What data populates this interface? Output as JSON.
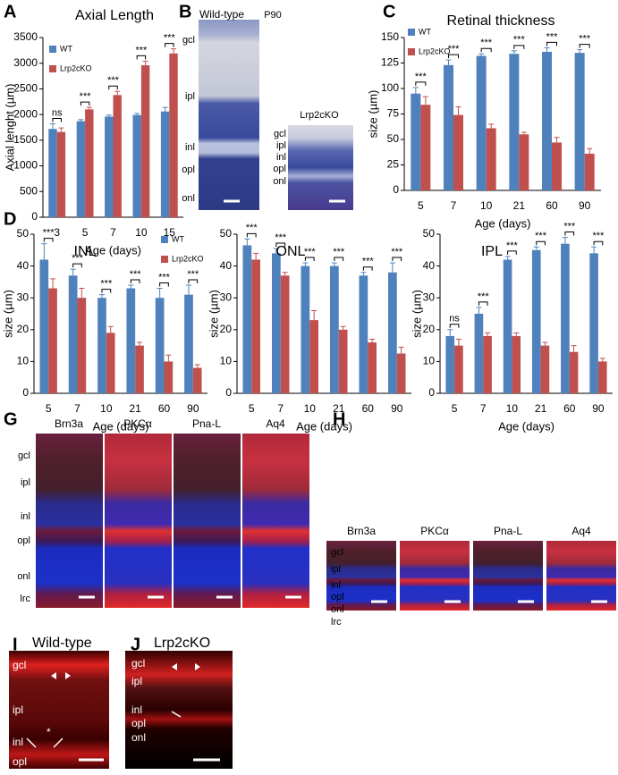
{
  "chart_data": [
    {
      "type": "bar",
      "panel": "A",
      "title": "Axial Length",
      "ylabel": "Axial lenght (µm)",
      "xlabel": "Age (days)",
      "categories": [
        "3",
        "5",
        "7",
        "10",
        "15"
      ],
      "series": [
        {
          "name": "WT",
          "color": "#4f81bd",
          "values": [
            1720,
            1870,
            1960,
            1990,
            2060
          ],
          "errors": [
            100,
            30,
            30,
            30,
            80
          ]
        },
        {
          "name": "Lrp2cKO",
          "color": "#c0504d",
          "values": [
            1660,
            2100,
            2380,
            2960,
            3190
          ],
          "errors": [
            80,
            40,
            70,
            80,
            90
          ]
        }
      ],
      "significance": [
        "ns",
        "***",
        "***",
        "***",
        "***"
      ],
      "ylim": [
        0,
        3500
      ],
      "yticks": [
        0,
        500,
        1000,
        1500,
        2000,
        2500,
        3000,
        3500
      ],
      "legend": "upper left"
    },
    {
      "type": "bar",
      "panel": "C",
      "title": "Retinal thickness",
      "ylabel": "size (µm)",
      "xlabel": "Age (days)",
      "categories": [
        "5",
        "7",
        "10",
        "21",
        "60",
        "90"
      ],
      "series": [
        {
          "name": "WT",
          "color": "#4f81bd",
          "values": [
            95,
            123,
            132,
            134,
            136,
            135
          ],
          "errors": [
            6,
            5,
            2,
            3,
            4,
            3
          ]
        },
        {
          "name": "Lrp2cKO",
          "color": "#c0504d",
          "values": [
            84,
            74,
            61,
            55,
            47,
            36
          ],
          "errors": [
            8,
            8,
            4,
            2,
            5,
            5
          ]
        }
      ],
      "significance": [
        "***",
        "***",
        "***",
        "***",
        "***",
        "***"
      ],
      "ylim": [
        0,
        150
      ],
      "yticks": [
        0,
        25,
        50,
        75,
        100,
        125,
        150
      ],
      "legend": "upper left"
    },
    {
      "type": "bar",
      "panel": "D",
      "title": "INL",
      "ylabel": "size (µm)",
      "xlabel": "Age (days)",
      "categories": [
        "5",
        "7",
        "10",
        "21",
        "60",
        "90"
      ],
      "series": [
        {
          "name": "WT",
          "color": "#4f81bd",
          "values": [
            42,
            37,
            30,
            33,
            30,
            31
          ],
          "errors": [
            5,
            2,
            1,
            1,
            3,
            3
          ]
        },
        {
          "name": "Lrp2cKO",
          "color": "#c0504d",
          "values": [
            33,
            30,
            19,
            15,
            10,
            8
          ],
          "errors": [
            3,
            3,
            2,
            1,
            2,
            1
          ]
        }
      ],
      "significance": [
        "***",
        "***",
        "***",
        "***",
        "***",
        "***"
      ],
      "ylim": [
        0,
        50
      ],
      "yticks": [
        0,
        10,
        20,
        30,
        40,
        50
      ],
      "legend": "upper right"
    },
    {
      "type": "bar",
      "title": "ONL",
      "ylabel": "size (µm)",
      "xlabel": "Age (days)",
      "categories": [
        "5",
        "7",
        "10",
        "21",
        "60",
        "90"
      ],
      "series": [
        {
          "color": "#4f81bd",
          "values": [
            46.5,
            44,
            40,
            40,
            37,
            38
          ],
          "errors": [
            2,
            1.5,
            1,
            1,
            1,
            3
          ]
        },
        {
          "color": "#c0504d",
          "values": [
            42,
            37,
            23,
            20,
            16,
            12.5
          ],
          "errors": [
            2,
            1,
            3,
            1,
            1,
            2
          ]
        }
      ],
      "significance": [
        "***",
        "***",
        "***",
        "***",
        "***",
        "***"
      ],
      "ylim": [
        0,
        50
      ],
      "yticks": [
        0,
        10,
        20,
        30,
        40,
        50
      ]
    },
    {
      "type": "bar",
      "title": "IPL",
      "ylabel": "size (µm)",
      "xlabel": "Age (days)",
      "categories": [
        "5",
        "7",
        "10",
        "21",
        "60",
        "90"
      ],
      "series": [
        {
          "color": "#4f81bd",
          "values": [
            18,
            25,
            42,
            45,
            47,
            44
          ],
          "errors": [
            2,
            2,
            1,
            1,
            2,
            2
          ]
        },
        {
          "color": "#c0504d",
          "values": [
            15,
            18,
            18,
            15,
            13,
            10
          ],
          "errors": [
            2,
            1,
            1,
            1,
            2,
            1
          ]
        }
      ],
      "significance": [
        "ns",
        "***",
        "***",
        "***",
        "***",
        "***"
      ],
      "ylim": [
        0,
        50
      ],
      "yticks": [
        0,
        10,
        20,
        30,
        40,
        50
      ]
    }
  ],
  "panel_b": {
    "label": "B",
    "wild_type": "Wild-type",
    "age": "P90",
    "mutant": "Lrp2cKO",
    "wt_layers": [
      "gcl",
      "ipl",
      "inl",
      "opl",
      "onl"
    ],
    "mutant_layers": [
      "gcl",
      "ipl",
      "inl",
      "opl",
      "onl"
    ]
  },
  "panel_g": {
    "label": "G",
    "stains": [
      "Brn3a",
      "PKCα",
      "Pna-L",
      "Aq4"
    ],
    "layers": [
      "gcl",
      "ipl",
      "inl",
      "opl",
      "onl",
      "lrc"
    ]
  },
  "panel_h": {
    "label": "H",
    "stains": [
      "Brn3a",
      "PKCα",
      "Pna-L",
      "Aq4"
    ],
    "layers": [
      "gcl",
      "ipl",
      "inl",
      "opl",
      "onl",
      "lrc"
    ]
  },
  "panel_i": {
    "label": "I",
    "title": "Wild-type",
    "layers": [
      "gcl",
      "ipl",
      "inl",
      "opl"
    ],
    "mark": "*"
  },
  "panel_j": {
    "label": "J",
    "title": "Lrp2cKO",
    "layers": [
      "gcl",
      "ipl",
      "inl",
      "opl",
      "onl"
    ]
  }
}
